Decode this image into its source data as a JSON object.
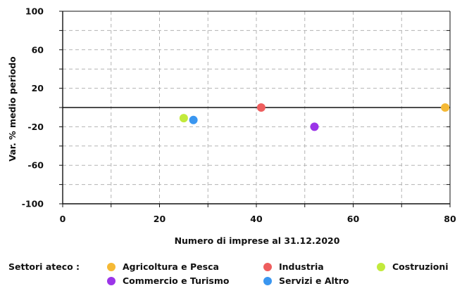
{
  "chart_data": {
    "type": "scatter",
    "xlabel": "Numero di imprese al 31.12.2020",
    "ylabel": "Var. % medio periodo",
    "xlim": [
      0,
      80
    ],
    "ylim": [
      -100,
      100
    ],
    "x_ticks": [
      0,
      20,
      40,
      60,
      80
    ],
    "y_ticks": [
      100,
      60,
      20,
      -20,
      -60,
      -100
    ],
    "grid": true,
    "legend_title": "Settori ateco :",
    "legend_placement": "bottom",
    "series": [
      {
        "name": "Agricoltura e Pesca",
        "color": "#f5b935",
        "points": [
          [
            79,
            0
          ]
        ]
      },
      {
        "name": "Industria",
        "color": "#ee5e5e",
        "points": [
          [
            41,
            0
          ]
        ]
      },
      {
        "name": "Costruzioni",
        "color": "#c2ea3c",
        "points": [
          [
            25,
            -11
          ]
        ]
      },
      {
        "name": "Commercio e Turismo",
        "color": "#9b34e8",
        "points": [
          [
            52,
            -20
          ]
        ]
      },
      {
        "name": "Servizi e Altro",
        "color": "#3a96f0",
        "points": [
          [
            27,
            -13
          ]
        ]
      }
    ]
  }
}
